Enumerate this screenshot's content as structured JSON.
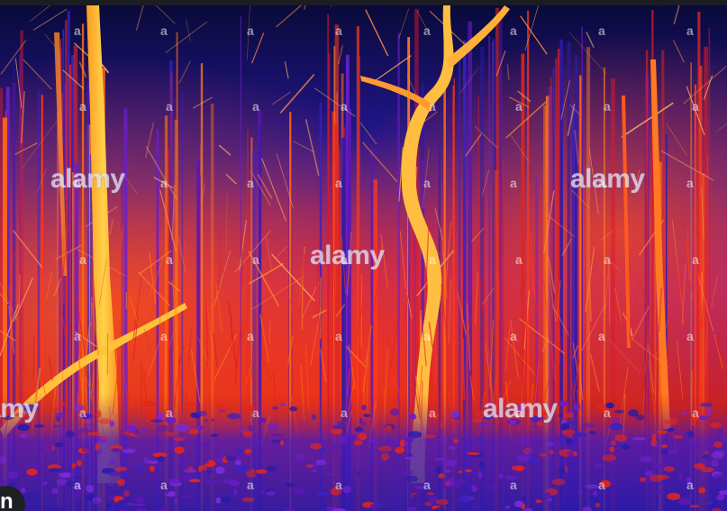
{
  "image": {
    "subject": "thermal forest",
    "palette": {
      "background_dark": "#0a0a3a",
      "deep_blue": "#2a1aa8",
      "violet": "#6a1ec8",
      "red": "#e0261c",
      "orange": "#ff6a10",
      "yellow": "#ffd24a"
    }
  },
  "watermark": {
    "brand": "alamy",
    "small_mark": "a"
  },
  "corner_badge": {
    "letter": "n"
  }
}
